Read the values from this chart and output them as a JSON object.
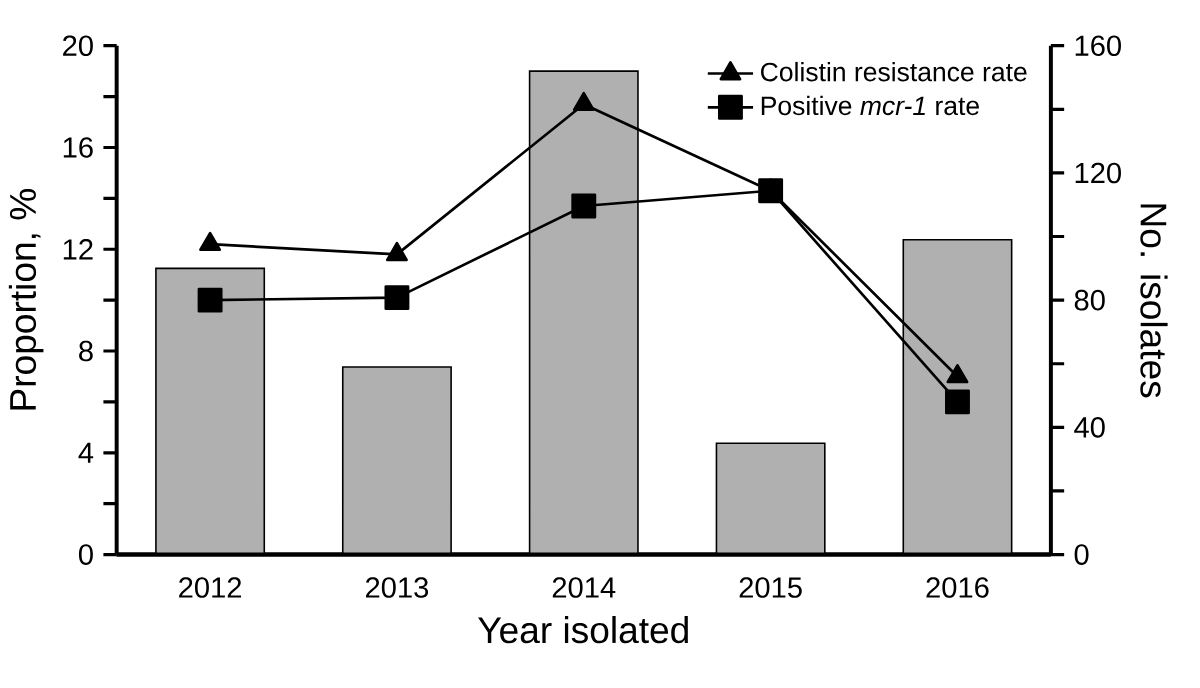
{
  "chart_data": {
    "type": "line",
    "categories": [
      "2012",
      "2013",
      "2014",
      "2015",
      "2016"
    ],
    "xlabel": "Year isolated",
    "ylabel": "Proportion, %",
    "y2label": "No. isolates",
    "ylim": [
      0,
      20
    ],
    "yticks": [
      0,
      4,
      8,
      12,
      16,
      20
    ],
    "y2lim": [
      0,
      160
    ],
    "y2ticks": [
      0,
      40,
      80,
      120,
      160
    ],
    "legend": "top right",
    "grid": false,
    "series": [
      {
        "type": "bar",
        "axis": "y2",
        "color": "#b0b0b0",
        "values": [
          90,
          59,
          152,
          35,
          99
        ]
      },
      {
        "name": "Colistin resistance rate",
        "color": "#000000",
        "marker": "triangle",
        "values": [
          12.2,
          11.8,
          17.7,
          14.3,
          7.0
        ]
      },
      {
        "name": "Positive *mcr-1* rate",
        "color": "#000000",
        "marker": "square",
        "values": [
          10.0,
          10.1,
          13.7,
          14.3,
          6.0
        ]
      }
    ]
  }
}
